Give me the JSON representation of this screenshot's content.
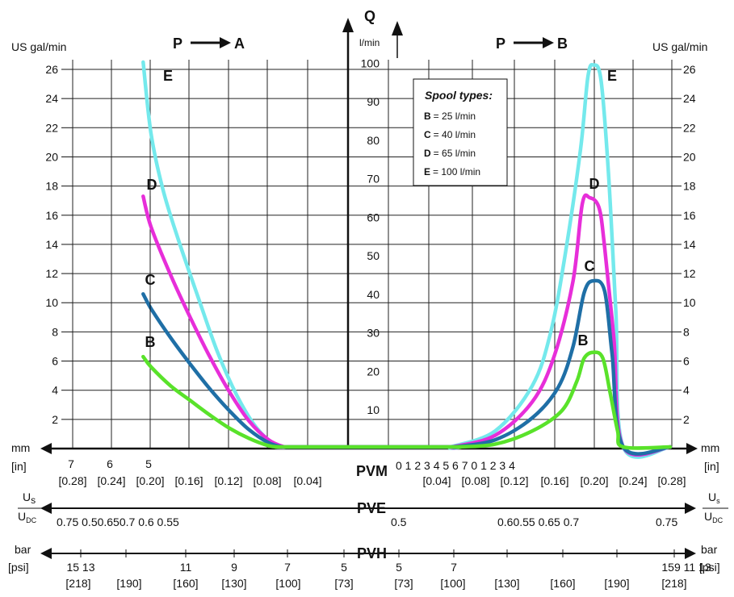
{
  "chart_data": {
    "type": "line",
    "title": "",
    "q_axis": {
      "label": "Q",
      "unit": "l/min",
      "ticks": [
        10,
        20,
        30,
        40,
        50,
        60,
        70,
        80,
        90,
        100
      ]
    },
    "left_axis": {
      "label": "US gal/min",
      "ticks": [
        2,
        4,
        6,
        8,
        10,
        12,
        14,
        16,
        18,
        20,
        22,
        24,
        26
      ]
    },
    "right_axis": {
      "label": "US gal/min",
      "ticks": [
        2,
        4,
        6,
        8,
        10,
        12,
        14,
        16,
        18,
        20,
        22,
        24,
        26
      ]
    },
    "direction_labels": {
      "left": "P",
      "left_target": "A",
      "right": "P",
      "right_target": "B"
    },
    "legend": {
      "title": "Spool types:",
      "entries": [
        {
          "key": "B",
          "text": "= 25 l/min"
        },
        {
          "key": "C",
          "text": "= 40 l/min"
        },
        {
          "key": "D",
          "text": "= 65 l/min"
        },
        {
          "key": "E",
          "text": "= 100 l/min"
        }
      ]
    },
    "series": [
      {
        "name": "B",
        "color": "#59e22a",
        "max_flow": 25,
        "left": [
          [
            5.2,
            6.3
          ],
          [
            5.0,
            5.6
          ],
          [
            4.5,
            4.3
          ],
          [
            4.0,
            3.3
          ],
          [
            3.5,
            2.3
          ],
          [
            3.0,
            1.4
          ],
          [
            2.5,
            0.7
          ],
          [
            2.0,
            0.2
          ],
          [
            1.7,
            0
          ]
        ],
        "right": [
          [
            1.5,
            0
          ],
          [
            2.5,
            0.3
          ],
          [
            3.5,
            1.2
          ],
          [
            4.3,
            2.6
          ],
          [
            4.7,
            4.6
          ],
          [
            4.9,
            6.2
          ],
          [
            5.15,
            6.6
          ],
          [
            5.4,
            6.2
          ],
          [
            5.6,
            3.8
          ],
          [
            5.8,
            1.2
          ],
          [
            5.95,
            0
          ]
        ]
      },
      {
        "name": "C",
        "color": "#1f6fa6",
        "max_flow": 40,
        "left": [
          [
            5.2,
            10.6
          ],
          [
            5.0,
            9.6
          ],
          [
            4.5,
            7.6
          ],
          [
            4.0,
            5.8
          ],
          [
            3.5,
            4.1
          ],
          [
            3.0,
            2.6
          ],
          [
            2.5,
            1.3
          ],
          [
            2.0,
            0.4
          ],
          [
            1.65,
            0
          ]
        ],
        "right": [
          [
            1.4,
            0
          ],
          [
            2.5,
            0.6
          ],
          [
            3.5,
            2.1
          ],
          [
            4.2,
            4.2
          ],
          [
            4.6,
            7.0
          ],
          [
            4.9,
            10.7
          ],
          [
            5.15,
            11.5
          ],
          [
            5.45,
            10.8
          ],
          [
            5.65,
            6.5
          ],
          [
            5.95,
            0
          ]
        ]
      },
      {
        "name": "D",
        "color": "#e72ed9",
        "max_flow": 65,
        "left": [
          [
            5.2,
            17.3
          ],
          [
            5.0,
            15.2
          ],
          [
            4.5,
            11.9
          ],
          [
            4.0,
            9.0
          ],
          [
            3.5,
            6.3
          ],
          [
            3.0,
            3.9
          ],
          [
            2.5,
            1.9
          ],
          [
            2.0,
            0.6
          ],
          [
            1.6,
            0
          ]
        ],
        "right": [
          [
            1.35,
            0
          ],
          [
            2.5,
            0.9
          ],
          [
            3.5,
            3.2
          ],
          [
            4.1,
            6.4
          ],
          [
            4.6,
            11.5
          ],
          [
            4.85,
            16.8
          ],
          [
            5.05,
            17.2
          ],
          [
            5.3,
            16.5
          ],
          [
            5.45,
            13.8
          ],
          [
            5.7,
            7.5
          ],
          [
            5.95,
            0
          ]
        ]
      },
      {
        "name": "E",
        "color": "#74e9ec",
        "max_flow": 100,
        "left": [
          [
            5.2,
            26.5
          ],
          [
            5.0,
            21.6
          ],
          [
            4.7,
            17.8
          ],
          [
            4.3,
            14.3
          ],
          [
            3.8,
            10.4
          ],
          [
            3.3,
            6.6
          ],
          [
            2.8,
            3.6
          ],
          [
            2.3,
            1.4
          ],
          [
            1.8,
            0.2
          ],
          [
            1.5,
            0
          ]
        ],
        "right": [
          [
            1.3,
            0
          ],
          [
            2.5,
            1.2
          ],
          [
            3.5,
            4.3
          ],
          [
            4.0,
            8.0
          ],
          [
            4.4,
            13.5
          ],
          [
            4.8,
            20.5
          ],
          [
            5.0,
            25.5
          ],
          [
            5.15,
            26.3
          ],
          [
            5.35,
            25.3
          ],
          [
            5.55,
            19.0
          ],
          [
            5.75,
            9.5
          ],
          [
            5.95,
            0
          ]
        ]
      }
    ],
    "x_axis": {
      "unit": "mm",
      "unit_in": "[in]",
      "left_mm_labels": [
        "7",
        "6",
        "5"
      ],
      "left_in_labels": [
        "[0.28]",
        "[0.24]",
        "[0.20]",
        "[0.16]",
        "[0.12]",
        "[0.08]",
        "[0.04]"
      ],
      "right_in_labels": [
        "[0.04]",
        "[0.08]",
        "[0.12]",
        "[0.16]",
        "[0.20]",
        "[0.24]",
        "[0.28]"
      ],
      "pvm_label": "PVM",
      "pvm_center_digits": "0 1 2 3 4 5 6 7 0 1 2 3 4"
    },
    "pve": {
      "label": "PVE",
      "us_label": "U",
      "us_sub": "s",
      "udc_label": "U",
      "udc_sub": "DC",
      "left_values": "0.75 0.50.650.7 0.6 0.55",
      "right_values_a": "0.5",
      "right_values_b": "0.60.55 0.65 0.7",
      "right_values_c": "0.75"
    },
    "pvh": {
      "label": "PVH",
      "unit_bar": "bar",
      "unit_psi": "[psi]",
      "left_bar": [
        "15 13",
        "11",
        "9",
        "7",
        "5"
      ],
      "left_psi": [
        "[218]",
        "[190]",
        "[160]",
        "[130]",
        "[100]",
        "[73]"
      ],
      "right_bar": [
        "5",
        "7",
        "159 11 13"
      ],
      "right_psi": [
        "[73]",
        "[100]",
        "[130]",
        "[160]",
        "[190]",
        "[218]"
      ]
    }
  }
}
